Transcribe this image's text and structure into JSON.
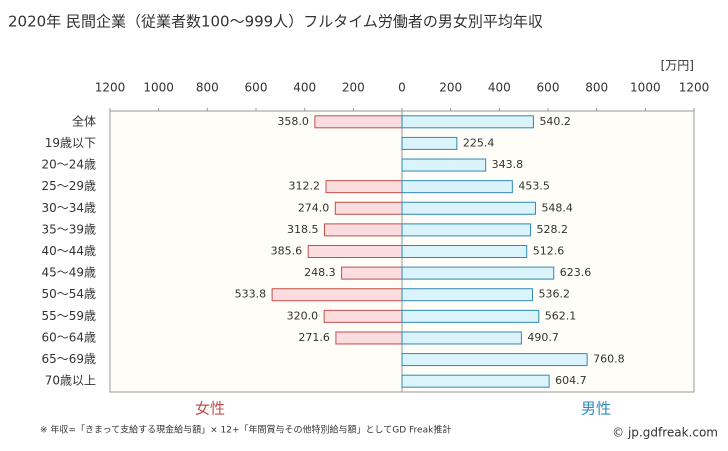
{
  "chart_data": {
    "type": "butterfly",
    "title": "2020年 民間企業（従業者数100〜999人）フルタイム労働者の男女別平均年収",
    "unit_label": "[万円]",
    "footnote": "※ 年収=「きまって支給する現金給与額」× 12+「年間賞与その他特別給与額」としてGD Freak推計",
    "credit": "© jp.gdfreak.com",
    "categories": [
      "全体",
      "19歳以下",
      "20〜24歳",
      "25〜29歳",
      "30〜34歳",
      "35〜39歳",
      "40〜44歳",
      "45〜49歳",
      "50〜54歳",
      "55〜59歳",
      "60〜64歳",
      "65〜69歳",
      "70歳以上"
    ],
    "series": [
      {
        "name": "女性",
        "side": "left",
        "color": "#fbdde0",
        "edgecolor": "#c0504d",
        "values": [
          358.0,
          null,
          null,
          312.2,
          274.0,
          318.5,
          385.6,
          248.3,
          533.8,
          320.0,
          271.6,
          null,
          null
        ],
        "value_labels": [
          "358.0",
          null,
          null,
          "312.2",
          "274.0",
          "318.5",
          "385.6",
          "248.3",
          "533.8",
          "320.0",
          "271.6",
          null,
          null
        ]
      },
      {
        "name": "男性",
        "side": "right",
        "color": "#dbf3fb",
        "edgecolor": "#2e8bb5",
        "values": [
          540.2,
          225.4,
          343.8,
          453.5,
          548.4,
          528.2,
          512.6,
          623.6,
          536.2,
          562.1,
          490.7,
          760.8,
          604.7
        ],
        "value_labels": [
          "540.2",
          "225.4",
          "343.8",
          "453.5",
          "548.4",
          "528.2",
          "512.6",
          "623.6",
          "536.2",
          "562.1",
          "490.7",
          "760.8",
          "604.7"
        ]
      }
    ],
    "xlim": [
      -1200,
      1200
    ],
    "xticks": [
      {
        "value": -1200,
        "label": "1200"
      },
      {
        "value": -1000,
        "label": "1000"
      },
      {
        "value": -800,
        "label": "800"
      },
      {
        "value": -600,
        "label": "600"
      },
      {
        "value": -400,
        "label": "400"
      },
      {
        "value": -200,
        "label": "200"
      },
      0,
      200,
      400,
      600,
      800,
      1000,
      1200
    ],
    "grid": false
  }
}
